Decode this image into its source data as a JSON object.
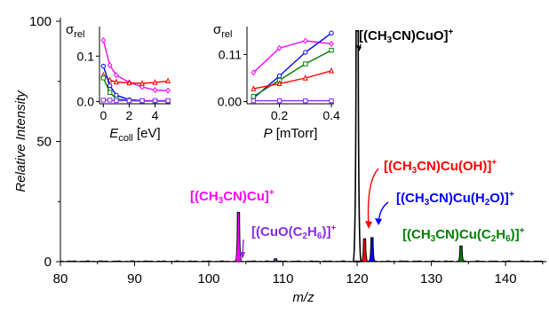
{
  "chart_data": [
    {
      "type": "line",
      "xlabel": "m/z",
      "ylabel": "Relative Intensity",
      "xlim": [
        80,
        145.5
      ],
      "ylim": [
        0,
        100
      ],
      "x_ticks": [
        "80",
        "90",
        "100",
        "110",
        "120",
        "130",
        "140"
      ],
      "y_ticks": [
        "0",
        "50",
        "100"
      ],
      "series": [
        {
          "name": "[(CH3CN)CuO]+",
          "label_parts": [
            [
              "[(CH",
              ""
            ],
            [
              "3",
              "sub"
            ],
            [
              "CN)CuO]",
              ""
            ],
            [
              "+",
              "sup"
            ]
          ],
          "color": "#000000",
          "fill": false,
          "x": [
            120
          ],
          "y": [
            96
          ]
        },
        {
          "name": "[(CH3CN)Cu]+",
          "label_parts": [
            [
              "[(CH",
              ""
            ],
            [
              "3",
              "sub"
            ],
            [
              "CN)Cu]",
              ""
            ],
            [
              "+",
              "sup"
            ]
          ],
          "color": "#ff00ff",
          "fill": true,
          "x": [
            104
          ],
          "y": [
            20.5
          ]
        },
        {
          "name": "[(CuO(C2H6)]+",
          "label_parts": [
            [
              "[(CuO(C",
              ""
            ],
            [
              "2",
              "sub"
            ],
            [
              "H",
              ""
            ],
            [
              "6",
              "sub"
            ],
            [
              ")]",
              ""
            ],
            [
              "+",
              "sup"
            ]
          ],
          "color": "#8a2be2",
          "fill": true,
          "x": [
            109
          ],
          "y": [
            1.2
          ]
        },
        {
          "name": "[(CH3CN)Cu(OH)]+",
          "label_parts": [
            [
              "[(CH",
              ""
            ],
            [
              "3",
              "sub"
            ],
            [
              "CN)Cu(OH)]",
              ""
            ],
            [
              "+",
              "sup"
            ]
          ],
          "color": "#ff0000",
          "fill": true,
          "x": [
            121
          ],
          "y": [
            9.5
          ]
        },
        {
          "name": "[(CH3CN)Cu(H2O)]+",
          "label_parts": [
            [
              "[(CH",
              ""
            ],
            [
              "3",
              "sub"
            ],
            [
              "CN)Cu(H",
              ""
            ],
            [
              "2",
              "sub"
            ],
            [
              "O)]",
              ""
            ],
            [
              "+",
              "sup"
            ]
          ],
          "color": "#0000ff",
          "fill": true,
          "x": [
            122
          ],
          "y": [
            10
          ]
        },
        {
          "name": "[(CH3CN)Cu(C2H6)]+",
          "label_parts": [
            [
              "[(CH",
              ""
            ],
            [
              "3",
              "sub"
            ],
            [
              "CN)Cu(C",
              ""
            ],
            [
              "2",
              "sub"
            ],
            [
              "H",
              ""
            ],
            [
              "6",
              "sub"
            ],
            [
              ")]",
              ""
            ],
            [
              "+",
              "sup"
            ]
          ],
          "color": "#008000",
          "fill": true,
          "x": [
            134
          ],
          "y": [
            6.5
          ]
        }
      ]
    },
    {
      "type": "line",
      "xlabel_main": "E",
      "xlabel_sub": "coll",
      "xlabel_unit": " [eV]",
      "ylabel_main": "σ",
      "ylabel_sub": "rel",
      "xlim": [
        -0.3,
        5.2
      ],
      "ylim": [
        -0.005,
        0.165
      ],
      "x_ticks": [
        "0",
        "2",
        "4"
      ],
      "y_ticks": [
        "0.0",
        "0.1"
      ],
      "x": [
        0,
        0.5,
        1,
        2,
        3,
        4,
        5
      ],
      "series": [
        {
          "color": "#ff00ff",
          "marker": "diamond",
          "values": [
            0.135,
            0.08,
            0.058,
            0.042,
            0.032,
            0.025,
            0.024
          ]
        },
        {
          "color": "#ff0000",
          "marker": "triangle",
          "values": [
            0.058,
            0.047,
            0.043,
            0.041,
            0.04,
            0.042,
            0.045
          ]
        },
        {
          "color": "#0000ff",
          "marker": "circle",
          "values": [
            0.078,
            0.035,
            0.014,
            0.004,
            0.002,
            0.001,
            0.001
          ]
        },
        {
          "color": "#008000",
          "marker": "square",
          "values": [
            0.052,
            0.02,
            0.006,
            0.002,
            0.001,
            0.001,
            0.001
          ]
        },
        {
          "color": "#8a2be2",
          "marker": "square",
          "values": [
            0.003,
            0.003,
            0.002,
            0.002,
            0.002,
            0.002,
            0.002
          ]
        }
      ]
    },
    {
      "type": "line",
      "xlabel_main": "P",
      "xlabel_unit": " [mTorr]",
      "ylabel_main": "σ",
      "ylabel_sub": "rel",
      "xlim": [
        0.075,
        0.41
      ],
      "ylim": [
        -0.005,
        0.175
      ],
      "x_ticks": [
        "0.2",
        "0.4"
      ],
      "y_ticks": [
        "0.00",
        "0.11"
      ],
      "x": [
        0.1,
        0.2,
        0.3,
        0.4
      ],
      "series": [
        {
          "color": "#ff00ff",
          "marker": "diamond",
          "values": [
            0.068,
            0.125,
            0.142,
            0.135
          ]
        },
        {
          "color": "#0000ff",
          "marker": "circle",
          "values": [
            0.008,
            0.06,
            0.115,
            0.16
          ]
        },
        {
          "color": "#008000",
          "marker": "square",
          "values": [
            0.012,
            0.05,
            0.088,
            0.12
          ]
        },
        {
          "color": "#ff0000",
          "marker": "triangle",
          "values": [
            0.03,
            0.042,
            0.055,
            0.072
          ]
        },
        {
          "color": "#8a2be2",
          "marker": "square",
          "values": [
            0.002,
            0.002,
            0.002,
            0.002
          ]
        }
      ]
    }
  ]
}
